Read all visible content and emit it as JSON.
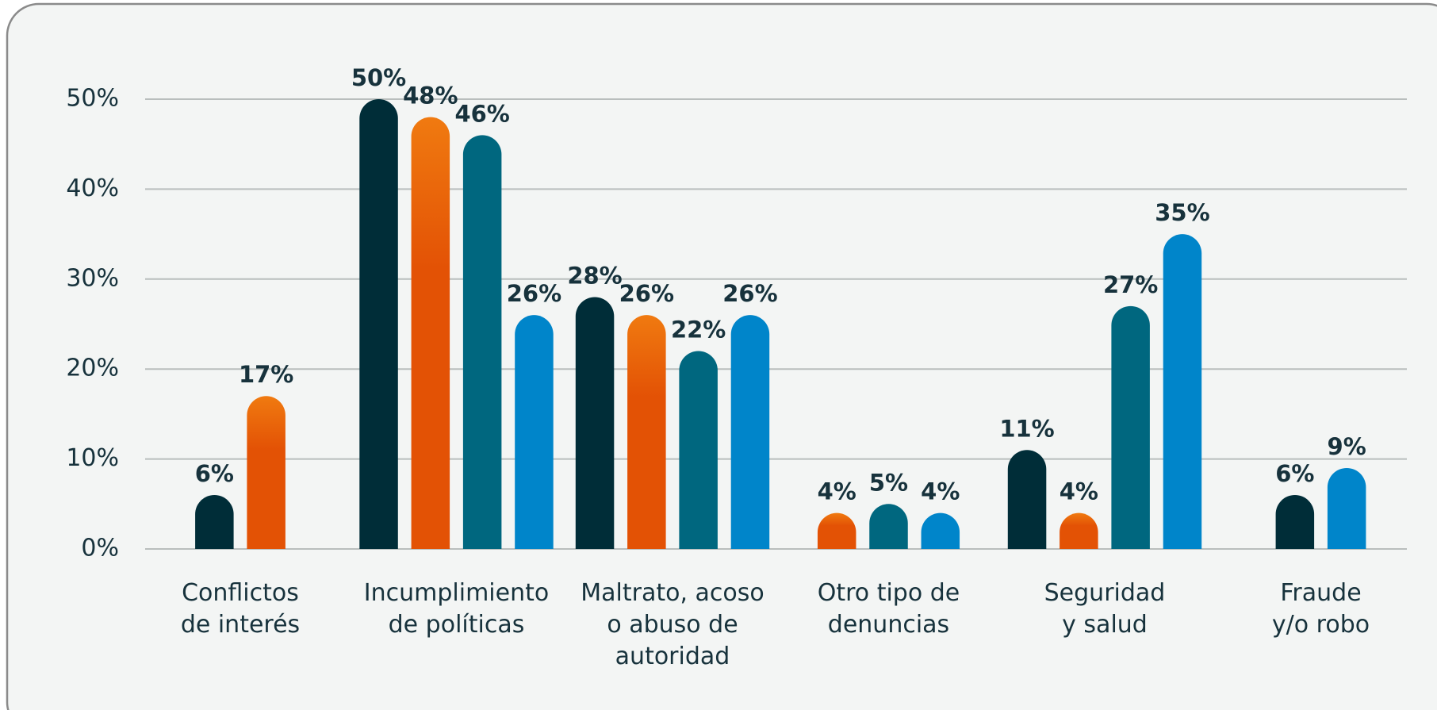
{
  "chart_data": {
    "type": "bar",
    "categories": [
      "Conflictos\nde interés",
      "Incumplimiento\nde políticas",
      "Maltrato, acoso\no abuso de\nautoridad",
      "Otro tipo de\ndenuncias",
      "Seguridad\ny salud",
      "Fraude\ny/o robo"
    ],
    "series": [
      {
        "color": "#002d38",
        "values": [
          6,
          50,
          28,
          null,
          11,
          6
        ],
        "value_labels": [
          "6%",
          "50%",
          "28%",
          null,
          "11%",
          "6%"
        ]
      },
      {
        "color": "#e35205",
        "values": [
          17,
          48,
          26,
          4,
          4,
          null
        ],
        "value_labels": [
          "17%",
          "48%",
          "26%",
          "4%",
          "4%",
          null
        ]
      },
      {
        "color": "#00677f",
        "values": [
          null,
          46,
          22,
          5,
          27,
          null
        ],
        "value_labels": [
          null,
          "46%",
          "22%",
          "5%",
          "27%",
          null
        ]
      },
      {
        "color": "#0085ca",
        "values": [
          null,
          26,
          26,
          4,
          35,
          9
        ],
        "value_labels": [
          null,
          "26%",
          "26%",
          "4%",
          "35%",
          "9%"
        ]
      }
    ],
    "ylim": [
      0,
      50
    ],
    "yticks": [
      {
        "value": 0,
        "label": "0%"
      },
      {
        "value": 10,
        "label": "10%"
      },
      {
        "value": 20,
        "label": "20%"
      },
      {
        "value": 30,
        "label": "30%"
      },
      {
        "value": 40,
        "label": "40%"
      },
      {
        "value": 50,
        "label": "50%"
      }
    ],
    "grid": true
  }
}
